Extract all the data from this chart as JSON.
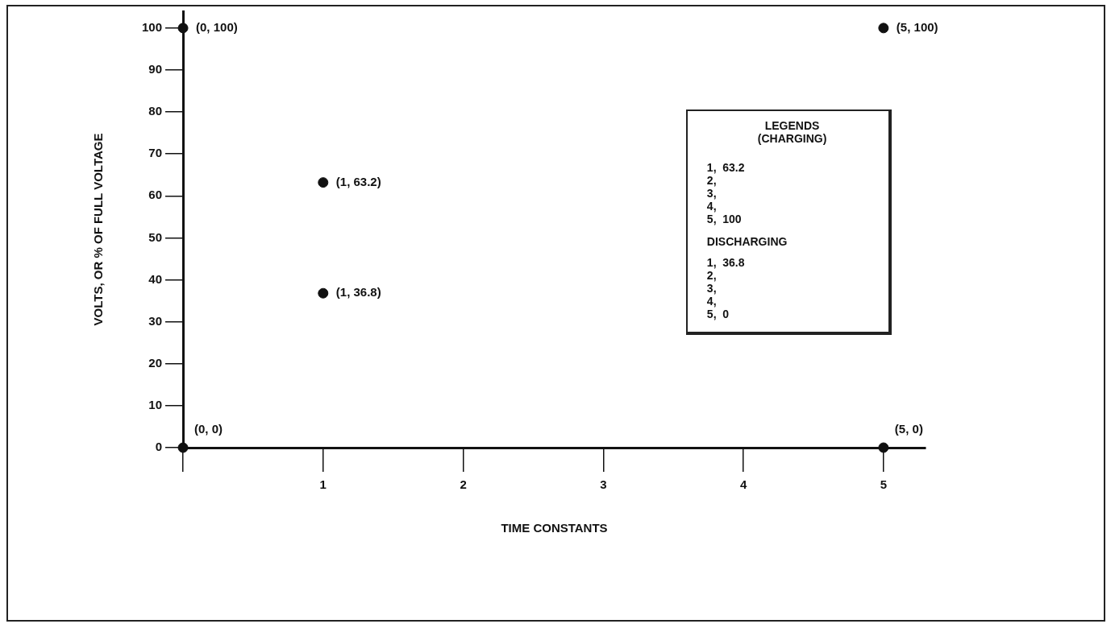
{
  "chart_data": {
    "type": "scatter",
    "xlabel": "TIME CONSTANTS",
    "ylabel": "VOLTS, OR % OF FULL VOLTAGE",
    "x": [
      0,
      0,
      1,
      1,
      5,
      5
    ],
    "series": [
      {
        "color": "#111111",
        "values": [
          100,
          0,
          63.2,
          36.8,
          100,
          0
        ]
      }
    ],
    "xlim": [
      0,
      5.3
    ],
    "ylim": [
      0,
      104
    ],
    "xticks": [
      {
        "value": 0,
        "label": null
      },
      1,
      2,
      3,
      4,
      5
    ],
    "yticks": [
      0,
      10,
      20,
      30,
      40,
      50,
      60,
      70,
      80,
      90,
      100
    ],
    "grid": false,
    "legend": false,
    "marker": "circle",
    "annotations": [
      {
        "text": "(0, 100)",
        "x": 0,
        "y": 100
      },
      {
        "text": "(0, 0)",
        "x": 0,
        "y": 0
      },
      {
        "text": "(1, 63.2)",
        "x": 1,
        "y": 63.2
      },
      {
        "text": "(1, 36.8)",
        "x": 1,
        "y": 36.8
      },
      {
        "text": "(5, 100)",
        "x": 5,
        "y": 100
      },
      {
        "text": "(5, 0)",
        "x": 5,
        "y": 0
      },
      "LEGENDS",
      "(CHARGING)",
      "1,  63.2",
      "2,",
      "3,",
      "4,",
      "5,  100",
      "DISCHARGING",
      "1,  36.8",
      "2,",
      "3,",
      "4,",
      "5,  0"
    ]
  }
}
